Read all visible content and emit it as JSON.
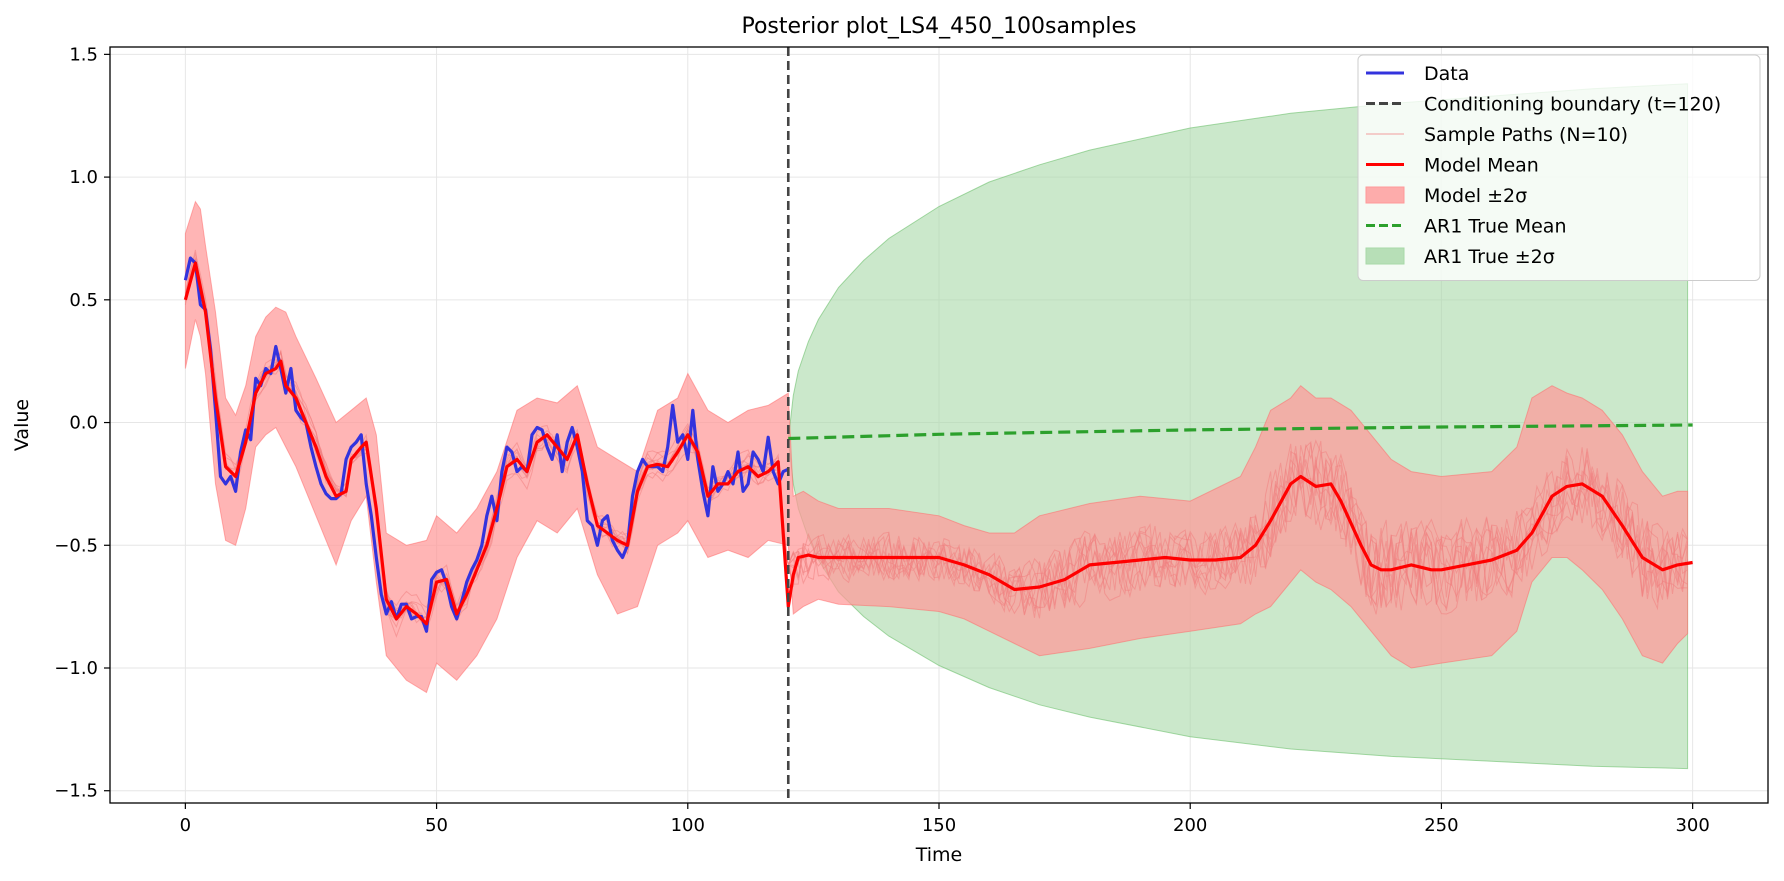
{
  "chart_data": {
    "type": "line",
    "title": "Posterior plot_LS4_450_100samples",
    "xlabel": "Time",
    "ylabel": "Value",
    "xlim": [
      -15,
      315
    ],
    "ylim": [
      -1.55,
      1.53
    ],
    "xticks": [
      0,
      50,
      100,
      150,
      200,
      250,
      300
    ],
    "yticks": [
      -1.5,
      -1.0,
      -0.5,
      0.0,
      0.5,
      1.0,
      1.5
    ],
    "xtick_labels": [
      "0",
      "50",
      "100",
      "150",
      "200",
      "250",
      "300"
    ],
    "ytick_labels": [
      "−1.5",
      "−1.0",
      "−0.5",
      "0.0",
      "0.5",
      "1.0",
      "1.5"
    ],
    "grid": true,
    "legend_position": "top-right",
    "conditioning_boundary": 120,
    "colors": {
      "data": "#3333dd",
      "boundary": "#444444",
      "sample": "#f08080",
      "model_mean": "#ff0000",
      "model_band": "#ff9999",
      "ar1_mean": "#2ca02c",
      "ar1_band": "#a8d8a8"
    },
    "legend": [
      {
        "label": "Data",
        "kind": "line",
        "color": "#3333dd"
      },
      {
        "label": "Conditioning boundary (t=120)",
        "kind": "dashed",
        "color": "#444444"
      },
      {
        "label": "Sample Paths (N=10)",
        "kind": "thin",
        "color": "#f08080"
      },
      {
        "label": "Model Mean",
        "kind": "line",
        "color": "#ff0000"
      },
      {
        "label": "Model ±2σ",
        "kind": "patch",
        "color": "#ff9999"
      },
      {
        "label": "AR1 True Mean",
        "kind": "dashed",
        "color": "#2ca02c"
      },
      {
        "label": "AR1 True ±2σ",
        "kind": "patch",
        "color": "#a8d8a8"
      }
    ],
    "data_series": {
      "name": "Data",
      "x": [
        0,
        1,
        2,
        3,
        4,
        5,
        6,
        7,
        8,
        9,
        10,
        11,
        12,
        13,
        14,
        15,
        16,
        17,
        18,
        19,
        20,
        21,
        22,
        23,
        24,
        25,
        26,
        27,
        28,
        29,
        30,
        31,
        32,
        33,
        34,
        35,
        36,
        37,
        38,
        39,
        40,
        41,
        42,
        43,
        44,
        45,
        46,
        47,
        48,
        49,
        50,
        51,
        52,
        53,
        54,
        55,
        56,
        57,
        58,
        59,
        60,
        61,
        62,
        63,
        64,
        65,
        66,
        67,
        68,
        69,
        70,
        71,
        72,
        73,
        74,
        75,
        76,
        77,
        78,
        79,
        80,
        81,
        82,
        83,
        84,
        85,
        86,
        87,
        88,
        89,
        90,
        91,
        92,
        93,
        94,
        95,
        96,
        97,
        98,
        99,
        100,
        101,
        102,
        103,
        104,
        105,
        106,
        107,
        108,
        109,
        110,
        111,
        112,
        113,
        114,
        115,
        116,
        117,
        118,
        119,
        120
      ],
      "y": [
        0.58,
        0.67,
        0.65,
        0.48,
        0.46,
        0.3,
        0.05,
        -0.22,
        -0.25,
        -0.22,
        -0.28,
        -0.12,
        -0.03,
        -0.07,
        0.18,
        0.15,
        0.22,
        0.2,
        0.31,
        0.22,
        0.12,
        0.22,
        0.05,
        0.02,
        0.0,
        -0.1,
        -0.18,
        -0.25,
        -0.29,
        -0.31,
        -0.31,
        -0.29,
        -0.15,
        -0.1,
        -0.08,
        -0.05,
        -0.25,
        -0.38,
        -0.55,
        -0.7,
        -0.78,
        -0.73,
        -0.8,
        -0.74,
        -0.74,
        -0.8,
        -0.79,
        -0.79,
        -0.85,
        -0.64,
        -0.61,
        -0.6,
        -0.66,
        -0.75,
        -0.8,
        -0.73,
        -0.65,
        -0.6,
        -0.56,
        -0.5,
        -0.38,
        -0.3,
        -0.4,
        -0.2,
        -0.1,
        -0.12,
        -0.2,
        -0.18,
        -0.2,
        -0.05,
        -0.02,
        -0.03,
        -0.1,
        -0.15,
        -0.05,
        -0.2,
        -0.08,
        -0.02,
        -0.1,
        -0.2,
        -0.4,
        -0.42,
        -0.5,
        -0.4,
        -0.38,
        -0.48,
        -0.52,
        -0.55,
        -0.5,
        -0.3,
        -0.2,
        -0.15,
        -0.18,
        -0.18,
        -0.18,
        -0.2,
        -0.1,
        0.07,
        -0.08,
        -0.05,
        -0.15,
        0.05,
        -0.15,
        -0.28,
        -0.38,
        -0.18,
        -0.28,
        -0.25,
        -0.2,
        -0.25,
        -0.12,
        -0.28,
        -0.25,
        -0.12,
        -0.15,
        -0.2,
        -0.06,
        -0.2,
        -0.25,
        -0.2,
        -0.19
      ]
    },
    "model_mean": {
      "name": "Model Mean",
      "x": [
        0,
        2,
        3,
        4,
        6,
        8,
        10,
        12,
        14,
        16,
        18,
        19,
        20,
        22,
        24,
        26,
        28,
        30,
        32,
        33,
        35,
        36,
        38,
        40,
        42,
        44,
        46,
        48,
        50,
        52,
        54,
        56,
        58,
        60,
        62,
        64,
        66,
        68,
        70,
        72,
        74,
        76,
        78,
        80,
        82,
        84,
        86,
        88,
        90,
        92,
        94,
        96,
        98,
        100,
        102,
        104,
        106,
        108,
        110,
        112,
        114,
        116,
        118,
        120,
        121,
        122,
        124,
        126,
        130,
        140,
        150,
        155,
        160,
        165,
        170,
        175,
        180,
        185,
        190,
        195,
        200,
        205,
        210,
        213,
        216,
        220,
        222,
        225,
        228,
        230,
        234,
        236,
        238,
        240,
        244,
        248,
        250,
        255,
        260,
        265,
        268,
        272,
        275,
        278,
        282,
        286,
        290,
        294,
        297,
        300
      ],
      "y": [
        0.5,
        0.65,
        0.55,
        0.45,
        0.1,
        -0.18,
        -0.22,
        -0.08,
        0.12,
        0.2,
        0.22,
        0.25,
        0.15,
        0.1,
        0.0,
        -0.1,
        -0.22,
        -0.3,
        -0.28,
        -0.15,
        -0.1,
        -0.08,
        -0.35,
        -0.72,
        -0.8,
        -0.75,
        -0.78,
        -0.82,
        -0.65,
        -0.64,
        -0.78,
        -0.7,
        -0.6,
        -0.5,
        -0.35,
        -0.18,
        -0.15,
        -0.2,
        -0.08,
        -0.05,
        -0.1,
        -0.15,
        -0.05,
        -0.25,
        -0.42,
        -0.45,
        -0.48,
        -0.5,
        -0.28,
        -0.18,
        -0.17,
        -0.18,
        -0.12,
        -0.05,
        -0.12,
        -0.3,
        -0.25,
        -0.25,
        -0.2,
        -0.18,
        -0.22,
        -0.2,
        -0.16,
        -0.75,
        -0.62,
        -0.55,
        -0.54,
        -0.55,
        -0.55,
        -0.55,
        -0.55,
        -0.58,
        -0.62,
        -0.68,
        -0.67,
        -0.64,
        -0.58,
        -0.57,
        -0.56,
        -0.55,
        -0.56,
        -0.56,
        -0.55,
        -0.5,
        -0.4,
        -0.25,
        -0.22,
        -0.26,
        -0.25,
        -0.32,
        -0.5,
        -0.58,
        -0.6,
        -0.6,
        -0.58,
        -0.6,
        -0.6,
        -0.58,
        -0.56,
        -0.52,
        -0.45,
        -0.3,
        -0.26,
        -0.25,
        -0.3,
        -0.42,
        -0.55,
        -0.6,
        -0.58,
        -0.57
      ]
    },
    "model_band": {
      "name": "Model ±2σ",
      "x": [
        0,
        2,
        3,
        4,
        6,
        8,
        10,
        12,
        14,
        16,
        18,
        20,
        22,
        26,
        30,
        33,
        36,
        38,
        40,
        44,
        48,
        50,
        54,
        58,
        62,
        66,
        70,
        74,
        78,
        82,
        86,
        90,
        94,
        98,
        100,
        104,
        108,
        112,
        116,
        120,
        121,
        123,
        126,
        130,
        140,
        150,
        155,
        160,
        165,
        170,
        180,
        190,
        200,
        210,
        213,
        216,
        220,
        222,
        225,
        228,
        232,
        236,
        240,
        244,
        250,
        260,
        265,
        268,
        272,
        275,
        278,
        282,
        286,
        290,
        294,
        297,
        299
      ],
      "upper": [
        0.77,
        0.9,
        0.87,
        0.72,
        0.45,
        0.1,
        0.03,
        0.15,
        0.35,
        0.43,
        0.47,
        0.45,
        0.35,
        0.18,
        0.0,
        0.05,
        0.1,
        -0.05,
        -0.45,
        -0.5,
        -0.48,
        -0.38,
        -0.45,
        -0.35,
        -0.2,
        0.05,
        0.1,
        0.08,
        0.15,
        -0.1,
        -0.15,
        -0.2,
        0.05,
        0.1,
        0.2,
        0.05,
        0.0,
        0.05,
        0.07,
        0.12,
        -0.3,
        -0.28,
        -0.32,
        -0.35,
        -0.35,
        -0.38,
        -0.42,
        -0.45,
        -0.45,
        -0.38,
        -0.33,
        -0.3,
        -0.32,
        -0.22,
        -0.1,
        0.05,
        0.1,
        0.15,
        0.1,
        0.1,
        0.05,
        -0.05,
        -0.15,
        -0.2,
        -0.22,
        -0.2,
        -0.1,
        0.1,
        0.15,
        0.12,
        0.1,
        0.05,
        -0.05,
        -0.2,
        -0.3,
        -0.28,
        -0.28
      ],
      "lower": [
        0.22,
        0.42,
        0.35,
        0.2,
        -0.25,
        -0.48,
        -0.5,
        -0.35,
        -0.1,
        -0.05,
        -0.02,
        -0.1,
        -0.18,
        -0.38,
        -0.58,
        -0.4,
        -0.3,
        -0.65,
        -0.95,
        -1.05,
        -1.1,
        -0.98,
        -1.05,
        -0.95,
        -0.8,
        -0.55,
        -0.4,
        -0.45,
        -0.35,
        -0.62,
        -0.78,
        -0.75,
        -0.5,
        -0.45,
        -0.4,
        -0.55,
        -0.52,
        -0.55,
        -0.48,
        -0.5,
        -0.78,
        -0.75,
        -0.72,
        -0.74,
        -0.75,
        -0.77,
        -0.8,
        -0.85,
        -0.9,
        -0.95,
        -0.92,
        -0.88,
        -0.85,
        -0.82,
        -0.78,
        -0.75,
        -0.65,
        -0.6,
        -0.65,
        -0.68,
        -0.75,
        -0.85,
        -0.95,
        -1.0,
        -0.98,
        -0.95,
        -0.85,
        -0.65,
        -0.55,
        -0.55,
        -0.6,
        -0.68,
        -0.8,
        -0.95,
        -0.98,
        -0.9,
        -0.86
      ]
    },
    "ar1_mean": {
      "name": "AR1 True Mean",
      "x": [
        120,
        150,
        200,
        250,
        300
      ],
      "y": [
        -0.065,
        -0.048,
        -0.03,
        -0.018,
        -0.01
      ]
    },
    "ar1_band": {
      "name": "AR1 True ±2σ",
      "x": [
        120,
        121,
        122,
        124,
        126,
        130,
        135,
        140,
        150,
        160,
        170,
        180,
        200,
        220,
        240,
        260,
        280,
        299
      ],
      "upper": [
        -0.07,
        0.11,
        0.21,
        0.33,
        0.42,
        0.55,
        0.66,
        0.75,
        0.88,
        0.98,
        1.05,
        1.11,
        1.2,
        1.26,
        1.3,
        1.33,
        1.36,
        1.38
      ],
      "lower": [
        -0.07,
        -0.25,
        -0.35,
        -0.47,
        -0.56,
        -0.69,
        -0.79,
        -0.87,
        -0.99,
        -1.08,
        -1.15,
        -1.2,
        -1.28,
        -1.33,
        -1.36,
        -1.38,
        -1.4,
        -1.41
      ]
    },
    "sample_paths": {
      "name": "Sample Paths (N=10)",
      "count": 10
    }
  }
}
